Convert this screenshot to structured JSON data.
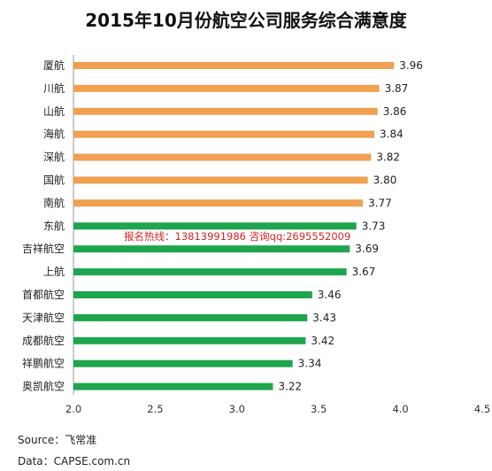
{
  "chart_data": {
    "type": "bar",
    "orientation": "horizontal",
    "title": "2015年10月份航空公司服务综合满意度",
    "categories": [
      "厦航",
      "川航",
      "山航",
      "海航",
      "深航",
      "国航",
      "南航",
      "东航",
      "吉祥航空",
      "上航",
      "首都航空",
      "天津航空",
      "成都航空",
      "祥鹏航空",
      "奥凯航空"
    ],
    "values": [
      3.96,
      3.87,
      3.86,
      3.84,
      3.82,
      3.8,
      3.77,
      3.73,
      3.69,
      3.67,
      3.46,
      3.43,
      3.42,
      3.34,
      3.22
    ],
    "value_labels": [
      "3.96",
      "3.87",
      "3.86",
      "3.84",
      "3.82",
      "3.80",
      "3.77",
      "3.73",
      "3.69",
      "3.67",
      "3.46",
      "3.43",
      "3.42",
      "3.34",
      "3.22"
    ],
    "colors": [
      "#f0a050",
      "#f0a050",
      "#f0a050",
      "#f0a050",
      "#f0a050",
      "#f0a050",
      "#f0a050",
      "#1ea54e",
      "#1ea54e",
      "#1ea54e",
      "#1ea54e",
      "#1ea54e",
      "#1ea54e",
      "#1ea54e",
      "#1ea54e"
    ],
    "xlim": [
      2.0,
      4.5
    ],
    "xticks": [
      "2.0",
      "2.5",
      "3.0",
      "3.5",
      "4.0",
      "4.5"
    ],
    "grid": false,
    "legend": "none"
  },
  "watermark": "报名热线：13813991986  咨询qq:2695552009",
  "footer": {
    "source": "Source：飞常准",
    "data": "Data：CAPSE.com.cn"
  }
}
